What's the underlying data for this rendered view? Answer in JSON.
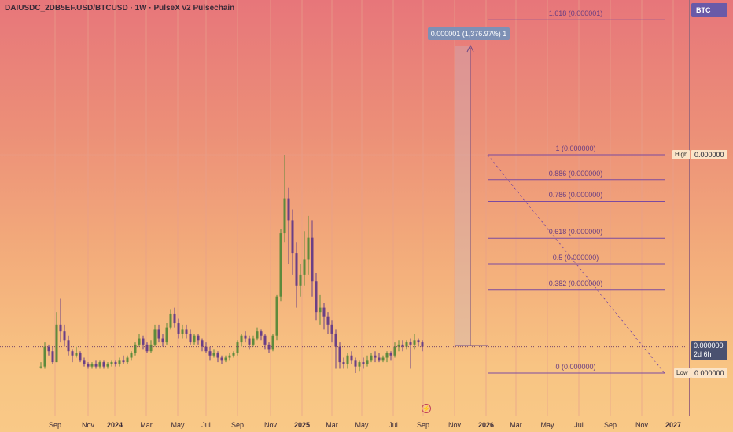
{
  "header": {
    "title": "DAIUSDC_2DB5EF.USD/BTCUSD · 1W · PulseX v2 Pulsechain"
  },
  "currency_button": {
    "label": "BTC"
  },
  "price_scale": {
    "high_tag": "High",
    "high_value": "0.000000",
    "current_value": "0.000000",
    "countdown": "2d 6h",
    "low_tag": "Low",
    "low_value": "0.000000"
  },
  "measure_tool": {
    "label": "0.000001 (1,376.97%) 1"
  },
  "fib_levels": [
    {
      "label": "1.618 (0.000001)",
      "level": 1.618
    },
    {
      "label": "1 (0.000000)",
      "level": 1
    },
    {
      "label": "0.886 (0.000000)",
      "level": 0.886
    },
    {
      "label": "0.786 (0.000000)",
      "level": 0.786
    },
    {
      "label": "0.618 (0.000000)",
      "level": 0.618
    },
    {
      "label": "0.5 (0.000000)",
      "level": 0.5
    },
    {
      "label": "0.382 (0.000000)",
      "level": 0.382
    },
    {
      "label": "0 (0.000000)",
      "level": 0
    }
  ],
  "time_axis": {
    "ticks": [
      {
        "label": "Sep",
        "bold": false
      },
      {
        "label": "Nov",
        "bold": false
      },
      {
        "label": "2024",
        "bold": true
      },
      {
        "label": "Mar",
        "bold": false
      },
      {
        "label": "May",
        "bold": false
      },
      {
        "label": "Jul",
        "bold": false
      },
      {
        "label": "Sep",
        "bold": false
      },
      {
        "label": "Nov",
        "bold": false
      },
      {
        "label": "2025",
        "bold": true
      },
      {
        "label": "Mar",
        "bold": false
      },
      {
        "label": "May",
        "bold": false
      },
      {
        "label": "Jul",
        "bold": false
      },
      {
        "label": "Sep",
        "bold": false
      },
      {
        "label": "Nov",
        "bold": false
      },
      {
        "label": "2026",
        "bold": true
      },
      {
        "label": "Mar",
        "bold": false
      },
      {
        "label": "May",
        "bold": false
      },
      {
        "label": "Jul",
        "bold": false
      },
      {
        "label": "Sep",
        "bold": false
      },
      {
        "label": "Nov",
        "bold": false
      },
      {
        "label": "2027",
        "bold": true
      }
    ]
  },
  "colors": {
    "bull": "#5e8a3c",
    "bear": "#6a3f86",
    "fib_line": "#7b4aa0",
    "measure_line": "#6b4a86",
    "grid": "#e7a08c"
  },
  "chart_data": {
    "type": "candlestick",
    "title": "DAIUSDC_2DB5EF.USD/BTCUSD · 1W · PulseX v2 Pulsechain",
    "note_scale": "relative price units (axis prints 0.000000)",
    "ylim": [
      0,
      100
    ],
    "candles": [
      [
        3,
        3,
        5,
        2
      ],
      [
        3,
        12,
        14,
        2
      ],
      [
        12,
        10,
        13,
        8
      ],
      [
        10,
        5,
        12,
        4
      ],
      [
        5,
        22,
        28,
        5
      ],
      [
        22,
        19,
        34,
        14
      ],
      [
        19,
        15,
        22,
        12
      ],
      [
        15,
        10,
        17,
        8
      ],
      [
        10,
        8,
        11,
        5
      ],
      [
        8,
        9,
        12,
        7
      ],
      [
        9,
        6,
        10,
        5
      ],
      [
        6,
        4,
        7,
        3
      ],
      [
        4,
        3,
        5,
        2
      ],
      [
        3,
        4,
        5,
        2
      ],
      [
        4,
        3,
        6,
        2
      ],
      [
        3,
        5,
        6,
        2
      ],
      [
        5,
        3,
        6,
        2
      ],
      [
        3,
        4,
        5,
        2
      ],
      [
        4,
        5,
        6,
        3
      ],
      [
        5,
        4,
        6,
        3
      ],
      [
        4,
        6,
        7,
        3
      ],
      [
        6,
        5,
        8,
        4
      ],
      [
        5,
        7,
        8,
        4
      ],
      [
        7,
        9,
        10,
        6
      ],
      [
        9,
        13,
        14,
        8
      ],
      [
        13,
        16,
        18,
        12
      ],
      [
        16,
        13,
        17,
        11
      ],
      [
        13,
        10,
        14,
        9
      ],
      [
        10,
        13,
        15,
        9
      ],
      [
        13,
        20,
        22,
        12
      ],
      [
        20,
        16,
        22,
        14
      ],
      [
        16,
        14,
        18,
        12
      ],
      [
        14,
        21,
        23,
        13
      ],
      [
        21,
        27,
        29,
        20
      ],
      [
        27,
        23,
        30,
        21
      ],
      [
        23,
        18,
        25,
        16
      ],
      [
        18,
        20,
        22,
        16
      ],
      [
        20,
        18,
        22,
        16
      ],
      [
        18,
        14,
        20,
        13
      ],
      [
        14,
        17,
        18,
        13
      ],
      [
        17,
        15,
        18,
        13
      ],
      [
        15,
        12,
        16,
        10
      ],
      [
        12,
        10,
        14,
        9
      ],
      [
        10,
        8,
        12,
        6
      ],
      [
        8,
        9,
        11,
        7
      ],
      [
        9,
        7,
        10,
        5
      ],
      [
        7,
        6,
        8,
        4
      ],
      [
        6,
        7,
        8,
        5
      ],
      [
        7,
        8,
        9,
        6
      ],
      [
        8,
        9,
        10,
        7
      ],
      [
        9,
        14,
        15,
        8
      ],
      [
        14,
        17,
        18,
        12
      ],
      [
        17,
        16,
        19,
        14
      ],
      [
        16,
        13,
        17,
        11
      ],
      [
        13,
        16,
        17,
        12
      ],
      [
        16,
        19,
        21,
        15
      ],
      [
        19,
        17,
        20,
        15
      ],
      [
        17,
        13,
        18,
        11
      ],
      [
        13,
        11,
        14,
        9
      ],
      [
        11,
        17,
        18,
        10
      ],
      [
        17,
        35,
        36,
        15
      ],
      [
        35,
        64,
        66,
        33
      ],
      [
        64,
        80,
        100,
        60
      ],
      [
        80,
        70,
        85,
        50
      ],
      [
        70,
        55,
        75,
        45
      ],
      [
        55,
        40,
        60,
        30
      ],
      [
        40,
        45,
        50,
        35
      ],
      [
        45,
        52,
        65,
        40
      ],
      [
        52,
        62,
        72,
        45
      ],
      [
        62,
        42,
        70,
        35
      ],
      [
        42,
        28,
        46,
        24
      ],
      [
        28,
        30,
        36,
        22
      ],
      [
        30,
        26,
        32,
        20
      ],
      [
        26,
        22,
        28,
        18
      ],
      [
        22,
        18,
        24,
        14
      ],
      [
        18,
        12,
        20,
        2
      ],
      [
        12,
        5,
        14,
        2
      ],
      [
        5,
        4,
        7,
        2
      ],
      [
        4,
        8,
        9,
        2
      ],
      [
        8,
        6,
        10,
        4
      ],
      [
        6,
        3,
        7,
        0
      ],
      [
        3,
        5,
        6,
        1
      ],
      [
        5,
        4,
        7,
        2
      ],
      [
        4,
        6,
        8,
        3
      ],
      [
        6,
        8,
        9,
        5
      ],
      [
        8,
        7,
        10,
        5
      ],
      [
        7,
        6,
        9,
        5
      ],
      [
        6,
        7,
        8,
        5
      ],
      [
        7,
        9,
        10,
        5
      ],
      [
        9,
        8,
        10,
        6
      ],
      [
        8,
        12,
        14,
        7
      ],
      [
        12,
        13,
        15,
        10
      ],
      [
        13,
        12,
        15,
        10
      ],
      [
        12,
        14,
        15,
        11
      ],
      [
        14,
        13,
        16,
        2
      ],
      [
        13,
        15,
        18,
        11
      ],
      [
        15,
        14,
        16,
        12
      ],
      [
        14,
        12,
        15,
        10
      ]
    ]
  }
}
